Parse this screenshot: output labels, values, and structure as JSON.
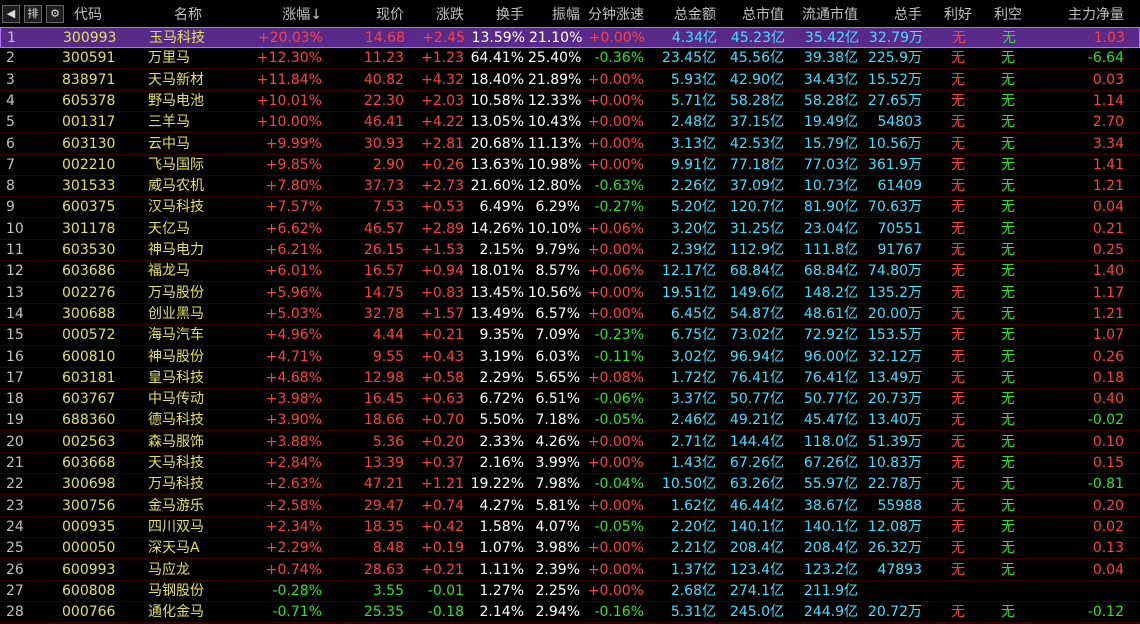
{
  "toolbar": {
    "first_icon": "skip-to-first-icon",
    "sort_label": "排",
    "settings_icon": "gear-icon"
  },
  "headers": [
    "代码",
    "名称",
    "涨幅",
    "现价",
    "涨跌",
    "换手",
    "振幅",
    "分钟涨速",
    "总金额",
    "总市值",
    "流通市值",
    "总手",
    "利好",
    "利空",
    "主力净量"
  ],
  "sort_indicator": "↓",
  "selected_row": 1,
  "rows": [
    [
      "1",
      "300993",
      "玉马科技",
      "+20.03%",
      "14.68",
      "+2.45",
      "13.59%",
      "21.10%",
      "+0.00%",
      "4.34亿",
      "45.23亿",
      "35.42亿",
      "32.79万",
      "无",
      "无",
      "1.03"
    ],
    [
      "2",
      "300591",
      "万里马",
      "+12.30%",
      "11.23",
      "+1.23",
      "64.41%",
      "25.40%",
      "-0.36%",
      "23.45亿",
      "45.56亿",
      "39.38亿",
      "225.9万",
      "无",
      "无",
      "-6.64"
    ],
    [
      "3",
      "838971",
      "天马新材",
      "+11.84%",
      "40.82",
      "+4.32",
      "18.40%",
      "21.89%",
      "+0.00%",
      "5.93亿",
      "42.90亿",
      "34.43亿",
      "15.52万",
      "无",
      "无",
      "0.03"
    ],
    [
      "4",
      "605378",
      "野马电池",
      "+10.01%",
      "22.30",
      "+2.03",
      "10.58%",
      "12.33%",
      "+0.00%",
      "5.71亿",
      "58.28亿",
      "58.28亿",
      "27.65万",
      "无",
      "无",
      "1.14"
    ],
    [
      "5",
      "001317",
      "三羊马",
      "+10.00%",
      "46.41",
      "+4.22",
      "13.05%",
      "10.43%",
      "+0.00%",
      "2.48亿",
      "37.15亿",
      "19.49亿",
      "54803",
      "无",
      "无",
      "2.70"
    ],
    [
      "6",
      "603130",
      "云中马",
      "+9.99%",
      "30.93",
      "+2.81",
      "20.68%",
      "11.13%",
      "+0.00%",
      "3.13亿",
      "42.53亿",
      "15.79亿",
      "10.56万",
      "无",
      "无",
      "3.34"
    ],
    [
      "7",
      "002210",
      "飞马国际",
      "+9.85%",
      "2.90",
      "+0.26",
      "13.63%",
      "10.98%",
      "+0.00%",
      "9.91亿",
      "77.18亿",
      "77.03亿",
      "361.9万",
      "无",
      "无",
      "1.41"
    ],
    [
      "8",
      "301533",
      "威马农机",
      "+7.80%",
      "37.73",
      "+2.73",
      "21.60%",
      "12.80%",
      "-0.63%",
      "2.26亿",
      "37.09亿",
      "10.73亿",
      "61409",
      "无",
      "无",
      "1.21"
    ],
    [
      "9",
      "600375",
      "汉马科技",
      "+7.57%",
      "7.53",
      "+0.53",
      "6.49%",
      "6.29%",
      "-0.27%",
      "5.20亿",
      "120.7亿",
      "81.90亿",
      "70.63万",
      "无",
      "无",
      "0.04"
    ],
    [
      "10",
      "301178",
      "天亿马",
      "+6.62%",
      "46.57",
      "+2.89",
      "14.26%",
      "10.10%",
      "+0.06%",
      "3.20亿",
      "31.25亿",
      "23.04亿",
      "70551",
      "无",
      "无",
      "0.21"
    ],
    [
      "11",
      "603530",
      "神马电力",
      "+6.21%",
      "26.15",
      "+1.53",
      "2.15%",
      "9.79%",
      "+0.00%",
      "2.39亿",
      "112.9亿",
      "111.8亿",
      "91767",
      "无",
      "无",
      "0.25"
    ],
    [
      "12",
      "603686",
      "福龙马",
      "+6.01%",
      "16.57",
      "+0.94",
      "18.01%",
      "8.57%",
      "+0.06%",
      "12.17亿",
      "68.84亿",
      "68.84亿",
      "74.80万",
      "无",
      "无",
      "1.40"
    ],
    [
      "13",
      "002276",
      "万马股份",
      "+5.96%",
      "14.75",
      "+0.83",
      "13.45%",
      "10.56%",
      "+0.00%",
      "19.51亿",
      "149.6亿",
      "148.2亿",
      "135.2万",
      "无",
      "无",
      "1.17"
    ],
    [
      "14",
      "300688",
      "创业黑马",
      "+5.03%",
      "32.78",
      "+1.57",
      "13.49%",
      "6.57%",
      "+0.00%",
      "6.45亿",
      "54.87亿",
      "48.61亿",
      "20.00万",
      "无",
      "无",
      "1.21"
    ],
    [
      "15",
      "000572",
      "海马汽车",
      "+4.96%",
      "4.44",
      "+0.21",
      "9.35%",
      "7.09%",
      "-0.23%",
      "6.75亿",
      "73.02亿",
      "72.92亿",
      "153.5万",
      "无",
      "无",
      "1.07"
    ],
    [
      "16",
      "600810",
      "神马股份",
      "+4.71%",
      "9.55",
      "+0.43",
      "3.19%",
      "6.03%",
      "-0.11%",
      "3.02亿",
      "96.94亿",
      "96.00亿",
      "32.12万",
      "无",
      "无",
      "0.26"
    ],
    [
      "17",
      "603181",
      "皇马科技",
      "+4.68%",
      "12.98",
      "+0.58",
      "2.29%",
      "5.65%",
      "+0.08%",
      "1.72亿",
      "76.41亿",
      "76.41亿",
      "13.49万",
      "无",
      "无",
      "0.18"
    ],
    [
      "18",
      "603767",
      "中马传动",
      "+3.98%",
      "16.45",
      "+0.63",
      "6.72%",
      "6.51%",
      "-0.06%",
      "3.37亿",
      "50.77亿",
      "50.77亿",
      "20.73万",
      "无",
      "无",
      "0.40"
    ],
    [
      "19",
      "688360",
      "德马科技",
      "+3.90%",
      "18.66",
      "+0.70",
      "5.50%",
      "7.18%",
      "-0.05%",
      "2.46亿",
      "49.21亿",
      "45.47亿",
      "13.40万",
      "无",
      "无",
      "-0.02"
    ],
    [
      "20",
      "002563",
      "森马服饰",
      "+3.88%",
      "5.36",
      "+0.20",
      "2.33%",
      "4.26%",
      "+0.00%",
      "2.71亿",
      "144.4亿",
      "118.0亿",
      "51.39万",
      "无",
      "无",
      "0.10"
    ],
    [
      "21",
      "603668",
      "天马科技",
      "+2.84%",
      "13.39",
      "+0.37",
      "2.16%",
      "3.99%",
      "+0.00%",
      "1.43亿",
      "67.26亿",
      "67.26亿",
      "10.83万",
      "无",
      "无",
      "0.15"
    ],
    [
      "22",
      "300698",
      "万马科技",
      "+2.63%",
      "47.21",
      "+1.21",
      "19.22%",
      "7.98%",
      "-0.04%",
      "10.50亿",
      "63.26亿",
      "55.97亿",
      "22.78万",
      "无",
      "无",
      "-0.81"
    ],
    [
      "23",
      "300756",
      "金马游乐",
      "+2.58%",
      "29.47",
      "+0.74",
      "4.27%",
      "5.81%",
      "+0.00%",
      "1.62亿",
      "46.44亿",
      "38.67亿",
      "55988",
      "无",
      "无",
      "0.20"
    ],
    [
      "24",
      "000935",
      "四川双马",
      "+2.34%",
      "18.35",
      "+0.42",
      "1.58%",
      "4.07%",
      "-0.05%",
      "2.20亿",
      "140.1亿",
      "140.1亿",
      "12.08万",
      "无",
      "无",
      "0.02"
    ],
    [
      "25",
      "000050",
      "深天马A",
      "+2.29%",
      "8.48",
      "+0.19",
      "1.07%",
      "3.98%",
      "+0.00%",
      "2.21亿",
      "208.4亿",
      "208.4亿",
      "26.32万",
      "无",
      "无",
      "0.13"
    ],
    [
      "26",
      "600993",
      "马应龙",
      "+0.74%",
      "28.63",
      "+0.21",
      "1.11%",
      "2.39%",
      "+0.00%",
      "1.37亿",
      "123.4亿",
      "123.2亿",
      "47893",
      "无",
      "无",
      "0.04"
    ],
    [
      "27",
      "600808",
      "马钢股份",
      "-0.28%",
      "3.55",
      "-0.01",
      "1.27%",
      "2.25%",
      "+0.00%",
      "2.68亿",
      "274.1亿",
      "211.9亿",
      "",
      "",
      "",
      ""
    ],
    [
      "28",
      "000766",
      "通化金马",
      "-0.71%",
      "25.35",
      "-0.18",
      "2.14%",
      "2.94%",
      "-0.16%",
      "5.31亿",
      "245.0亿",
      "244.9亿",
      "20.72万",
      "无",
      "无",
      "-0.12"
    ]
  ],
  "colors": {
    "background": "#000000",
    "up": "#ff4040",
    "down": "#30e030",
    "code": "#e0e060",
    "value": "#40e0ff",
    "selected_row": "#5a2a8a"
  }
}
